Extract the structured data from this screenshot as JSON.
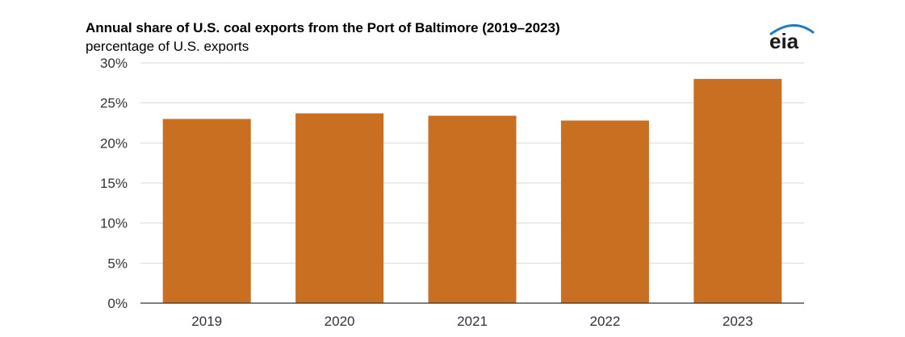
{
  "title": "Annual share of U.S. coal exports from the Port of Baltimore (2019–2023)",
  "subtitle": "percentage of U.S. exports",
  "logo": {
    "text": "eia",
    "color": "#1a1a1a",
    "accent": "#1f7bc1"
  },
  "colors": {
    "bar": "#c96f22",
    "grid": "#d9d9d9",
    "axis": "#333333"
  },
  "chart_data": {
    "type": "bar",
    "title": "Annual share of U.S. coal exports from the Port of Baltimore (2019–2023)",
    "subtitle": "percentage of U.S. exports",
    "categories": [
      "2019",
      "2020",
      "2021",
      "2022",
      "2023"
    ],
    "values": [
      23.0,
      23.7,
      23.4,
      22.8,
      28.0
    ],
    "ylim": [
      0,
      30
    ],
    "yticks": [
      0,
      5,
      10,
      15,
      20,
      25,
      30
    ],
    "ytick_labels": [
      "0%",
      "5%",
      "10%",
      "15%",
      "20%",
      "25%",
      "30%"
    ],
    "grid": true,
    "legend": "none"
  }
}
